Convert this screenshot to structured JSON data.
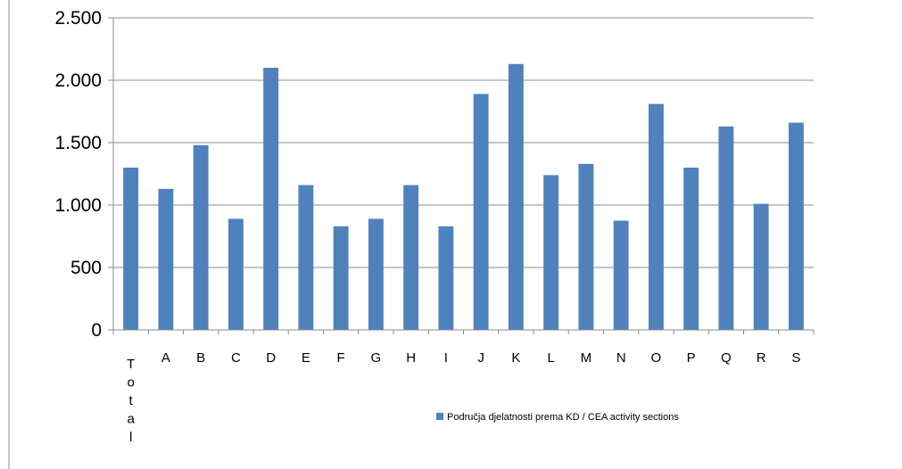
{
  "chart_data": {
    "type": "bar",
    "title": "",
    "xlabel": "",
    "ylabel": "",
    "ylim": [
      0,
      2500
    ],
    "yticks": [
      0,
      500,
      1000,
      1500,
      2000,
      2500
    ],
    "ytick_labels": [
      "0",
      "500",
      "1.000",
      "1.500",
      "2.000",
      "2.500"
    ],
    "grid": true,
    "legend_position": "bottom-right",
    "categories": [
      "Total",
      "A",
      "B",
      "C",
      "D",
      "E",
      "F",
      "G",
      "H",
      "I",
      "J",
      "K",
      "L",
      "M",
      "N",
      "O",
      "P",
      "Q",
      "R",
      "S"
    ],
    "series": [
      {
        "name": "Područja djelatnosti prema KD / CEA activity sections",
        "color": "#4f81bd",
        "values": [
          1300,
          1130,
          1480,
          890,
          2100,
          1160,
          830,
          890,
          1160,
          830,
          1890,
          2130,
          1240,
          1330,
          875,
          1810,
          1300,
          1630,
          1010,
          1660
        ]
      }
    ]
  }
}
